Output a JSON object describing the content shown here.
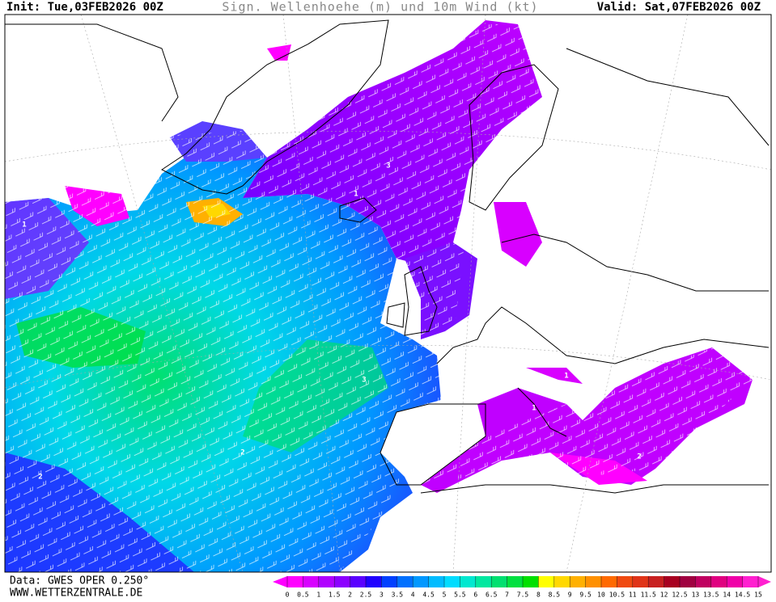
{
  "header": {
    "init": "Init: Tue,03FEB2026 00Z",
    "title": "Sign. Wellenhoehe (m) und 10m Wind (kt)",
    "valid": "Valid: Sat,07FEB2026 00Z"
  },
  "footer": {
    "data_source": "Data: GWES OPER 0.250°",
    "website": "WWW.WETTERZENTRALE.DE"
  },
  "contour_labels": [
    1,
    2,
    3,
    3,
    2,
    1,
    1,
    2,
    1
  ],
  "colorbar": {
    "levels": [
      0,
      0.5,
      1,
      1.5,
      2,
      2.5,
      3,
      3.5,
      4,
      4.5,
      5,
      5.5,
      6,
      6.5,
      7,
      7.5,
      8,
      8.5,
      9,
      9.5,
      10,
      10.5,
      11,
      11.5,
      12,
      12.5,
      13,
      13.5,
      14,
      14.5,
      15
    ],
    "colors": [
      "#ff00ff",
      "#d800ff",
      "#b000ff",
      "#8c00ff",
      "#5a00ff",
      "#2000ff",
      "#0040ff",
      "#0070ff",
      "#0098ff",
      "#00bcff",
      "#00dcff",
      "#00e8d0",
      "#00e8a0",
      "#00e070",
      "#00e040",
      "#00e000",
      "#ffff00",
      "#ffd800",
      "#ffb000",
      "#ff9000",
      "#ff6a00",
      "#f04a10",
      "#e03418",
      "#c82020",
      "#a80020",
      "#a00040",
      "#c00060",
      "#e00080",
      "#f000a8",
      "#ff20d0"
    ]
  }
}
